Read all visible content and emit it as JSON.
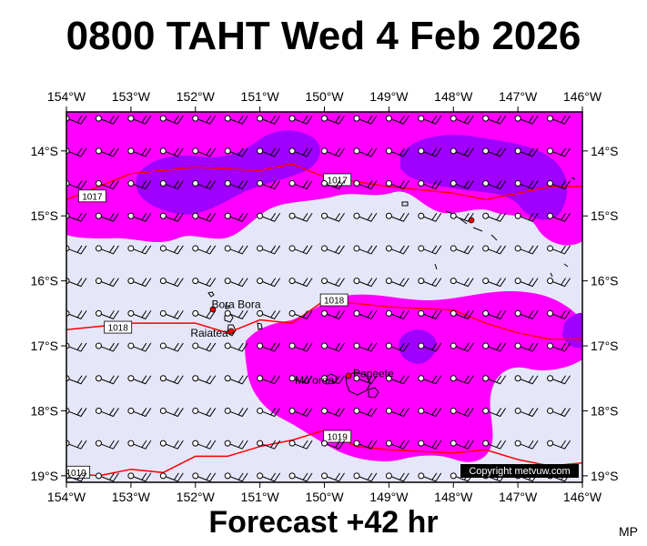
{
  "header": {
    "title": "0800 TAHT Wed 4 Feb 2026"
  },
  "footer": {
    "forecast": "Forecast +42 hr",
    "initials": "MP"
  },
  "map": {
    "lon_range": [
      -154,
      -146
    ],
    "lat_range": [
      -19.1,
      -13.4
    ],
    "lon_ticks": [
      {
        "value": -154,
        "label": "154°W"
      },
      {
        "value": -153,
        "label": "153°W"
      },
      {
        "value": -152,
        "label": "152°W"
      },
      {
        "value": -151,
        "label": "151°W"
      },
      {
        "value": -150,
        "label": "150°W"
      },
      {
        "value": -149,
        "label": "149°W"
      },
      {
        "value": -148,
        "label": "148°W"
      },
      {
        "value": -147,
        "label": "147°W"
      },
      {
        "value": -146,
        "label": "146°W"
      }
    ],
    "lat_ticks": [
      {
        "value": -14,
        "label": "14°S"
      },
      {
        "value": -15,
        "label": "15°S"
      },
      {
        "value": -16,
        "label": "16°S"
      },
      {
        "value": -17,
        "label": "17°S"
      },
      {
        "value": -18,
        "label": "18°S"
      },
      {
        "value": -19,
        "label": "19°S"
      }
    ],
    "colors": {
      "background": "#e6e6fa",
      "level1": "#ff00ff",
      "level2": "#a000ff",
      "isobar": "#ff0000",
      "coast": "#000000"
    },
    "isobars": [
      {
        "label": "1017",
        "points": [
          [
            -154,
            -14.75
          ],
          [
            -153.5,
            -14.55
          ],
          [
            -153,
            -14.35
          ],
          [
            -152,
            -14.25
          ],
          [
            -151,
            -14.3
          ],
          [
            -150.5,
            -14.2
          ],
          [
            -150,
            -14.4
          ],
          [
            -149,
            -14.55
          ],
          [
            -148,
            -14.65
          ],
          [
            -147.5,
            -14.75
          ],
          [
            -147,
            -14.65
          ],
          [
            -146.5,
            -14.55
          ],
          [
            -146,
            -14.55
          ]
        ],
        "label_positions": [
          [
            -153.6,
            -14.7
          ],
          [
            -149.8,
            -14.45
          ]
        ]
      },
      {
        "label": "1018",
        "points": [
          [
            -154,
            -16.75
          ],
          [
            -153,
            -16.65
          ],
          [
            -152,
            -16.65
          ],
          [
            -151.5,
            -16.8
          ],
          [
            -151,
            -16.6
          ],
          [
            -150.5,
            -16.65
          ],
          [
            -150,
            -16.3
          ],
          [
            -149,
            -16.4
          ],
          [
            -148,
            -16.45
          ],
          [
            -147.5,
            -16.65
          ],
          [
            -147,
            -16.8
          ],
          [
            -146.5,
            -16.9
          ],
          [
            -146,
            -16.9
          ]
        ],
        "label_positions": [
          [
            -153.2,
            -16.72
          ],
          [
            -149.85,
            -16.3
          ]
        ]
      },
      {
        "label": "1019",
        "points": [
          [
            -154,
            -18.95
          ],
          [
            -153.5,
            -19.0
          ],
          [
            -153,
            -18.9
          ],
          [
            -152.5,
            -18.95
          ],
          [
            -152,
            -18.7
          ],
          [
            -151.5,
            -18.7
          ],
          [
            -151,
            -18.55
          ],
          [
            -150.5,
            -18.45
          ],
          [
            -150,
            -18.3
          ],
          [
            -149.5,
            -18.55
          ],
          [
            -149,
            -18.6
          ],
          [
            -148,
            -18.65
          ],
          [
            -147.5,
            -18.6
          ],
          [
            -147,
            -18.75
          ],
          [
            -146.5,
            -18.85
          ],
          [
            -146,
            -18.8
          ]
        ],
        "label_positions": [
          [
            -153.85,
            -18.95
          ],
          [
            -149.8,
            -18.4
          ]
        ]
      }
    ],
    "places": [
      {
        "name": "Bora Bora",
        "lon": -151.75,
        "lat": -16.5
      },
      {
        "name": "Raiatea",
        "lon": -151.45,
        "lat": -16.83
      },
      {
        "name": "Mo'orea",
        "lon": -149.85,
        "lat": -17.53
      },
      {
        "name": "Papeete",
        "lon": -149.57,
        "lat": -17.54
      }
    ],
    "copyright": "Copyright metvuw.com"
  }
}
